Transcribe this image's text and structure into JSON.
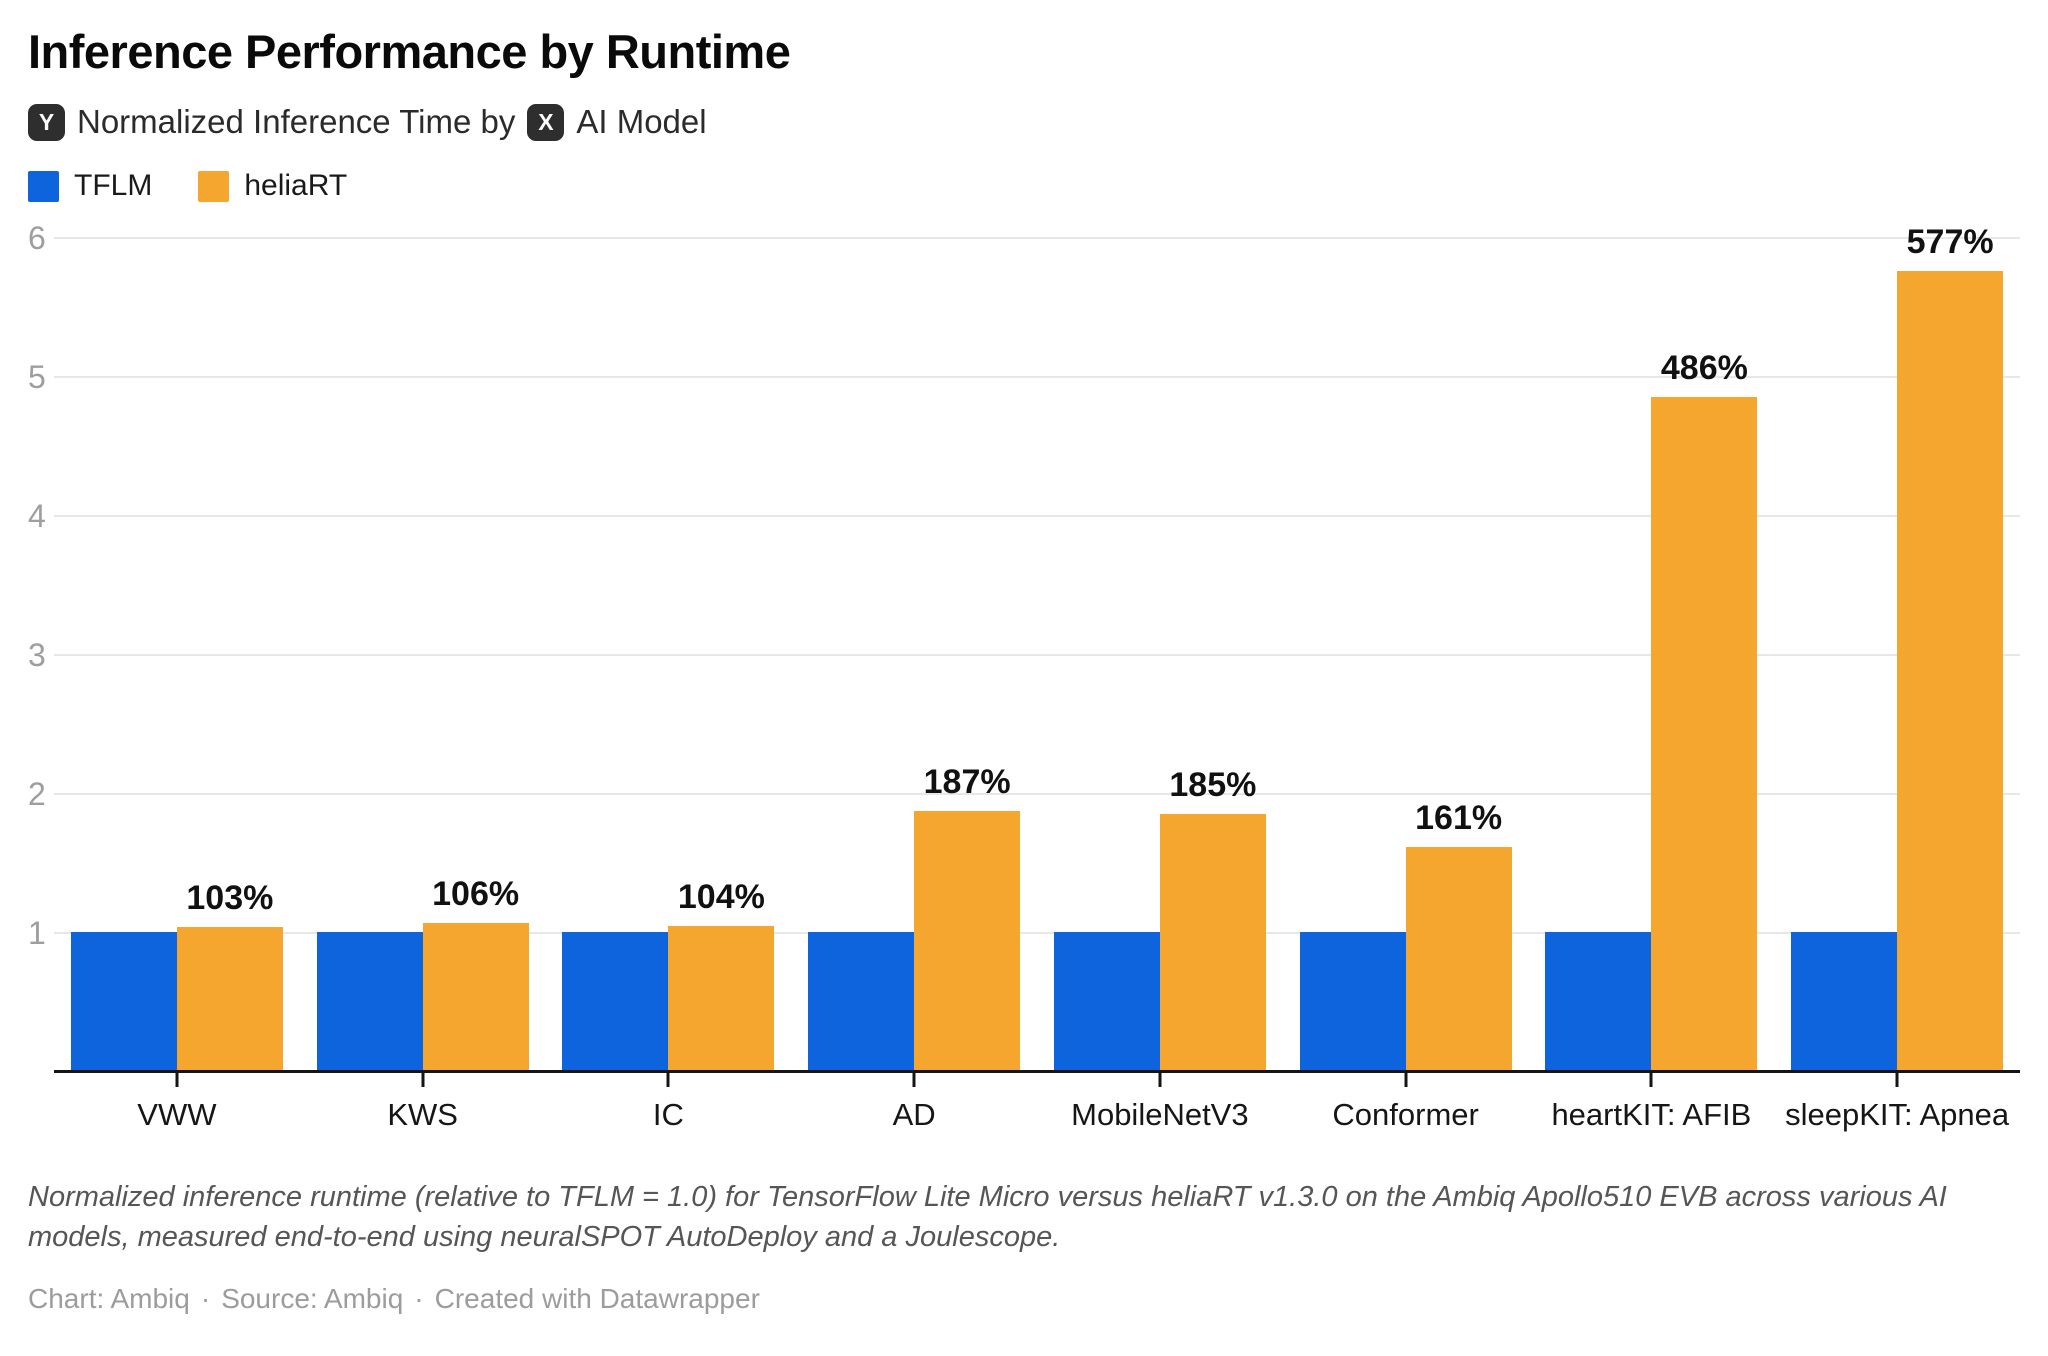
{
  "header": {
    "title": "Inference Performance by Runtime",
    "y_badge": "Y",
    "x_badge": "X",
    "subtitle_y_text": "Normalized Inference Time by",
    "subtitle_x_text": "AI Model"
  },
  "legend": {
    "items": [
      {
        "label": "TFLM"
      },
      {
        "label": "heliaRT"
      }
    ]
  },
  "chart_data": {
    "type": "bar",
    "categories": [
      "VWW",
      "KWS",
      "IC",
      "AD",
      "MobileNetV3",
      "Conformer",
      "heartKIT: AFIB",
      "sleepKIT: Apnea"
    ],
    "series": [
      {
        "name": "TFLM",
        "values": [
          1.0,
          1.0,
          1.0,
          1.0,
          1.0,
          1.0,
          1.0,
          1.0
        ]
      },
      {
        "name": "heliaRT",
        "values": [
          1.03,
          1.06,
          1.04,
          1.87,
          1.85,
          1.61,
          4.86,
          5.77
        ]
      }
    ],
    "value_labels": [
      "103%",
      "106%",
      "104%",
      "187%",
      "185%",
      "161%",
      "486%",
      "577%"
    ],
    "yticks": [
      "1",
      "2",
      "3",
      "4",
      "5",
      "6"
    ],
    "ylim": [
      0,
      6
    ],
    "grid": true,
    "legend_position": "top-left",
    "xlabel": "AI Model",
    "ylabel": "Normalized Inference Time"
  },
  "footer": {
    "note": "Normalized inference runtime (relative to TFLM = 1.0) for TensorFlow Lite Micro versus heliaRT v1.3.0 on the Ambiq Apollo510 EVB across various AI models, measured end-to-end using neuralSPOT AutoDeploy and a Joulescope.",
    "credit_chart": "Chart: Ambiq",
    "separator1": "·",
    "credit_source": "Source: Ambiq",
    "separator2": "·",
    "watermark": "Created with Datawrapper"
  },
  "colors": {
    "tflm": "#0d64dd",
    "heliart": "#f5a62e",
    "grid": "#e7e7e7",
    "axis": "#141414",
    "tick_label": "#9e9e9e"
  }
}
